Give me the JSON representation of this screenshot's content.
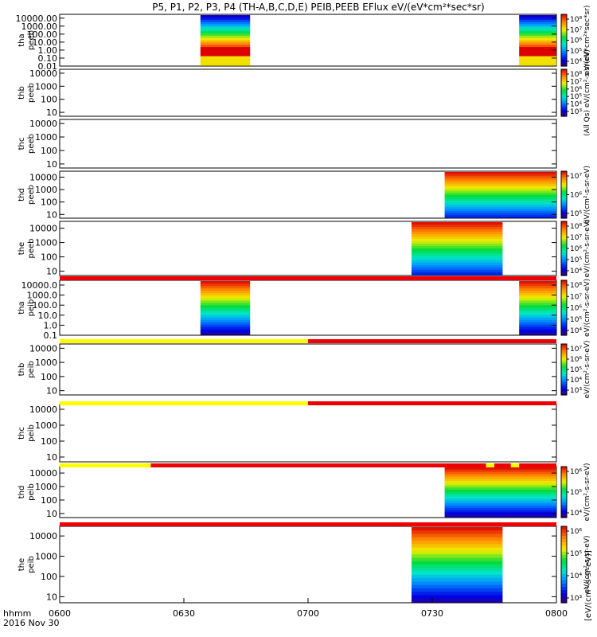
{
  "title": "P5, P1, P2, P3, P4 (TH-A,B,C,D,E) PEIB,PEEB EFlux eV/(eV*cm²*sec*sr)",
  "time_axis": {
    "labels": [
      "0600",
      "0630",
      "0700",
      "0730",
      "0800"
    ],
    "label_title": "hhmm",
    "date": "2016 Nov 30"
  },
  "colors": {
    "flag_red": "#ee0000",
    "flag_yellow": "#ffff00",
    "fill_red": "#dd0000"
  },
  "chart_data": {
    "type": "heatmap",
    "x_range": [
      "06:00",
      "08:00"
    ],
    "panels": [
      {
        "label": "tha peeb",
        "yticks": [
          "10000.00",
          "1000.00",
          "100.00",
          "10.00",
          "1.00",
          "0.10",
          "0.01"
        ],
        "ylim": [
          0.01,
          30000
        ],
        "ylog": true,
        "blocks": [
          [
            "06:34",
            "06:46"
          ],
          [
            "07:51",
            "08:00"
          ]
        ],
        "flux": "peeb_low",
        "cbar_ticks": [
          "10⁸",
          "10⁷",
          "10⁶",
          "10⁵",
          "10⁴"
        ],
        "cbar_title": "eV/(eV*cm²*sec*sr)"
      },
      {
        "label": "thb peeb",
        "yticks": [
          "10000",
          "1000",
          "100",
          "10"
        ],
        "ylim": [
          5,
          20000
        ],
        "ylog": true,
        "blocks": [],
        "cbar_ticks": [
          "10⁸",
          "10⁷",
          "10⁶",
          "10⁵",
          "10⁴",
          "10³"
        ],
        "cbar_title": "(All Qs) eV/(cm²-s-sr-eV)"
      },
      {
        "label": "thc peeb",
        "yticks": [
          "10000",
          "1000",
          "100",
          "10"
        ],
        "ylim": [
          5,
          20000
        ],
        "ylog": true,
        "blocks": []
      },
      {
        "label": "thd peeb",
        "yticks": [
          "10000",
          "1000",
          "100",
          "10"
        ],
        "ylim": [
          5,
          30000
        ],
        "ylog": true,
        "blocks": [
          [
            "07:33",
            "08:00"
          ]
        ],
        "flux": "peeb_high",
        "cbar_ticks": [
          "10⁷",
          "10⁶",
          "10⁵"
        ],
        "cbar_title": "eV/(cm²-s-sr-eV)"
      },
      {
        "label": "the peeb",
        "yticks": [
          "10000",
          "1000",
          "100",
          "10"
        ],
        "ylim": [
          5,
          30000
        ],
        "ylog": true,
        "blocks": [
          [
            "07:25",
            "07:47"
          ]
        ],
        "flux": "peeb_high",
        "cbar_ticks": [
          "10⁸",
          "10⁷",
          "10⁶",
          "10⁵",
          "10⁴"
        ],
        "cbar_title": "eV/(cm²-s-sr-eV)"
      },
      {
        "label": "tha peib",
        "yticks": [
          "10000.0",
          "1000.0",
          "100.0",
          "10.0",
          "1.0",
          "0.1"
        ],
        "ylim": [
          0.1,
          30000
        ],
        "ylog": true,
        "blocks": [
          [
            "06:34",
            "06:46"
          ],
          [
            "07:51",
            "08:00"
          ]
        ],
        "flux": "peib",
        "cbar_ticks": [
          "10⁸",
          "10⁷",
          "10⁶",
          "10⁵",
          "10⁴"
        ],
        "cbar_title": "eV/(cm²-s-sr-eV)"
      },
      {
        "label": "thb peib",
        "yticks": [
          "10000",
          "1000",
          "100",
          "10"
        ],
        "ylim": [
          5,
          20000
        ],
        "ylog": true,
        "blocks": [],
        "cbar_ticks": [
          "10⁷",
          "10⁶",
          "10⁵",
          "10⁴",
          "10³"
        ],
        "cbar_title": "eV/(cm²-s-sr-eV)"
      },
      {
        "label": "thc peib",
        "yticks": [
          "10000",
          "1000",
          "100",
          "10"
        ],
        "ylim": [
          5,
          20000
        ],
        "ylog": true,
        "blocks": []
      },
      {
        "label": "thd peib",
        "yticks": [
          "10000",
          "1000",
          "100",
          "10"
        ],
        "ylim": [
          5,
          30000
        ],
        "ylog": true,
        "blocks": [
          [
            "07:33",
            "08:00"
          ]
        ],
        "flux": "peib",
        "cbar_ticks": [
          "10⁶",
          "10⁵",
          "10⁴"
        ],
        "cbar_title": "eV/(cm²-s-sr-eV)"
      },
      {
        "label": "the peib",
        "yticks": [
          "10000",
          "1000",
          "100",
          "10"
        ],
        "ylim": [
          5,
          30000
        ],
        "ylog": true,
        "blocks": [
          [
            "07:25",
            "07:47"
          ]
        ],
        "flux": "peib",
        "cbar_ticks": [
          "10⁶",
          "10⁵",
          "10⁴",
          "10³"
        ],
        "cbar_title": "eV/(cm²-s-sr-eV)"
      }
    ],
    "flag_bars": [
      {
        "after_panel": 4,
        "segments": [
          [
            "06:00",
            "08:00",
            "red"
          ]
        ]
      },
      {
        "after_panel": 5,
        "segments": [
          [
            "06:00",
            "07:00",
            "yellow"
          ],
          [
            "07:00",
            "08:00",
            "red"
          ]
        ]
      },
      {
        "after_panel": 6,
        "segments": [
          [
            "06:00",
            "07:00",
            "yellow"
          ],
          [
            "07:00",
            "08:00",
            "red"
          ]
        ]
      },
      {
        "after_panel": 7,
        "segments": [
          [
            "06:00",
            "06:22",
            "yellow"
          ],
          [
            "06:22",
            "07:43",
            "red"
          ],
          [
            "07:43",
            "07:45",
            "yellow"
          ],
          [
            "07:45",
            "07:49",
            "red"
          ],
          [
            "07:49",
            "07:51",
            "yellow"
          ],
          [
            "07:51",
            "08:00",
            "red"
          ]
        ]
      },
      {
        "after_panel": 8,
        "segments": [
          [
            "06:00",
            "08:00",
            "red"
          ]
        ]
      }
    ],
    "colorbar_right_label": "[eV/(cm²-s-sr-eV)]"
  }
}
